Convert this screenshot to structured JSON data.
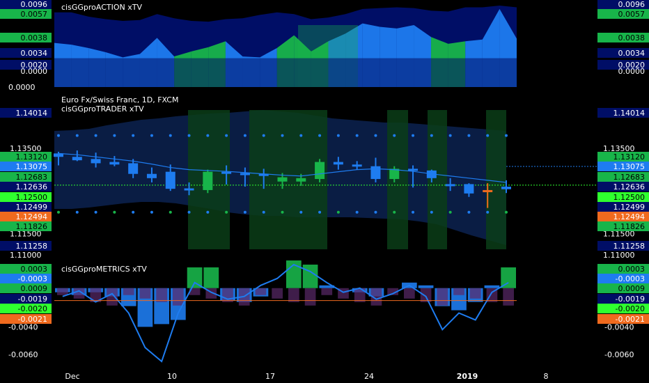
{
  "colors": {
    "background": "#000000",
    "navy": "#000e66",
    "blue": "#1e7cf0",
    "green": "#18b54a",
    "darkgreen": "#0a3d18",
    "darkblue": "#0a1d44",
    "orange": "#f06a1e",
    "lime": "#2fff2f",
    "bright_green": "#16c43c"
  },
  "panes": {
    "action": {
      "title": "cisGGproACTION xTV"
    },
    "trader": {
      "symbol_line": "Euro Fx/Swiss Franc, 1D, FXCM",
      "title": "cisGGproTRADER xTV"
    },
    "metrics": {
      "title": "cisGGproMETRICS xTV"
    }
  },
  "x_axis_labels": [
    "Dec",
    "10",
    "17",
    "24",
    "2019",
    "8"
  ],
  "chart_data": [
    {
      "type": "area",
      "name": "cisGGproACTION xTV",
      "ylim": [
        0,
        0.0096
      ],
      "tick_labels": [
        "0.0096",
        "0.0000"
      ],
      "badges": [
        {
          "text": "0.0096",
          "color": "navy"
        },
        {
          "text": "0.0057",
          "color": "green"
        },
        {
          "text": "0.0038",
          "color": "green"
        },
        {
          "text": "0.0034",
          "color": "navy"
        },
        {
          "text": "0.0020",
          "color": "navy"
        },
        {
          "text": "0.0000",
          "color": "none"
        }
      ],
      "series": [
        {
          "color": "blue",
          "values": [
            0.0052,
            0.005,
            0.0046,
            0.0041,
            0.0035,
            0.0039,
            0.0058,
            0.0036,
            0.0042,
            0.0047,
            0.0054,
            0.0036,
            0.0035,
            0.0046,
            0.0061,
            0.0042,
            0.0054,
            0.0063,
            0.0075,
            0.0071,
            0.0069,
            0.0073,
            0.0059,
            0.0051,
            0.0054,
            0.0056,
            0.0092,
            0.0057
          ]
        },
        {
          "color": "navy",
          "values": [
            0.0088,
            0.0088,
            0.0083,
            0.008,
            0.0078,
            0.0079,
            0.0086,
            0.0081,
            0.0078,
            0.0077,
            0.008,
            0.0081,
            0.0085,
            0.0088,
            0.0086,
            0.008,
            0.0082,
            0.0086,
            0.0092,
            0.0093,
            0.0094,
            0.0093,
            0.009,
            0.0089,
            0.0094,
            0.0094,
            0.0096,
            0.0094
          ]
        }
      ]
    },
    {
      "type": "candlestick",
      "name": "cisGGproTRADER xTV",
      "ylim": [
        1.109,
        1.144
      ],
      "tick_labels": [
        "1.13500",
        "1.11500",
        "1.11000"
      ],
      "badges": [
        {
          "text": "1.14014",
          "color": "navy"
        },
        {
          "text": "1.13120",
          "color": "green"
        },
        {
          "text": "1.13075",
          "color": "blue"
        },
        {
          "text": "1.12683",
          "color": "green"
        },
        {
          "text": "1.12636",
          "color": "navy"
        },
        {
          "text": "1.12500",
          "color": "lime"
        },
        {
          "text": "1.12499",
          "color": "navy"
        },
        {
          "text": "1.12494",
          "color": "orange"
        },
        {
          "text": "1.11826",
          "color": "green"
        },
        {
          "text": "1.11258",
          "color": "navy"
        }
      ],
      "candles": [
        {
          "o": 1.1338,
          "h": 1.1342,
          "l": 1.131,
          "c": 1.133,
          "color": "blue"
        },
        {
          "o": 1.133,
          "h": 1.1345,
          "l": 1.132,
          "c": 1.1322,
          "color": "blue"
        },
        {
          "o": 1.1325,
          "h": 1.134,
          "l": 1.1305,
          "c": 1.1315,
          "color": "blue"
        },
        {
          "o": 1.1318,
          "h": 1.1332,
          "l": 1.1308,
          "c": 1.1312,
          "color": "blue"
        },
        {
          "o": 1.1315,
          "h": 1.1325,
          "l": 1.128,
          "c": 1.129,
          "color": "blue"
        },
        {
          "o": 1.129,
          "h": 1.1305,
          "l": 1.127,
          "c": 1.128,
          "color": "blue"
        },
        {
          "o": 1.1295,
          "h": 1.1312,
          "l": 1.125,
          "c": 1.1255,
          "color": "blue"
        },
        {
          "o": 1.1256,
          "h": 1.127,
          "l": 1.124,
          "c": 1.1252,
          "color": "blue"
        },
        {
          "o": 1.1252,
          "h": 1.13,
          "l": 1.1245,
          "c": 1.1295,
          "color": "green"
        },
        {
          "o": 1.1295,
          "h": 1.131,
          "l": 1.1265,
          "c": 1.1292,
          "color": "blue"
        },
        {
          "o": 1.1292,
          "h": 1.1305,
          "l": 1.126,
          "c": 1.129,
          "color": "blue"
        },
        {
          "o": 1.129,
          "h": 1.1302,
          "l": 1.1255,
          "c": 1.1288,
          "color": "blue"
        },
        {
          "o": 1.1272,
          "h": 1.1292,
          "l": 1.1255,
          "c": 1.1282,
          "color": "green"
        },
        {
          "o": 1.1272,
          "h": 1.129,
          "l": 1.1262,
          "c": 1.128,
          "color": "green"
        },
        {
          "o": 1.1278,
          "h": 1.1325,
          "l": 1.127,
          "c": 1.1318,
          "color": "green"
        },
        {
          "o": 1.1318,
          "h": 1.133,
          "l": 1.13,
          "c": 1.1312,
          "color": "blue"
        },
        {
          "o": 1.1312,
          "h": 1.132,
          "l": 1.13,
          "c": 1.1308,
          "color": "blue"
        },
        {
          "o": 1.1308,
          "h": 1.1328,
          "l": 1.127,
          "c": 1.1278,
          "color": "blue"
        },
        {
          "o": 1.1278,
          "h": 1.1308,
          "l": 1.127,
          "c": 1.1302,
          "color": "green"
        },
        {
          "o": 1.1302,
          "h": 1.131,
          "l": 1.1258,
          "c": 1.1298,
          "color": "blue"
        },
        {
          "o": 1.1298,
          "h": 1.13,
          "l": 1.127,
          "c": 1.128,
          "color": "blue"
        },
        {
          "o": 1.1266,
          "h": 1.128,
          "l": 1.125,
          "c": 1.1265,
          "color": "blue"
        },
        {
          "o": 1.1266,
          "h": 1.1268,
          "l": 1.1236,
          "c": 1.1244,
          "color": "blue"
        },
        {
          "o": 1.1252,
          "h": 1.1268,
          "l": 1.121,
          "c": 1.1249,
          "color": "orange"
        },
        {
          "o": 1.126,
          "h": 1.1275,
          "l": 1.1245,
          "c": 1.1254,
          "color": "blue"
        }
      ]
    },
    {
      "type": "bar",
      "name": "cisGGproMETRICS xTV",
      "ylim": [
        -0.0068,
        0.0006
      ],
      "tick_labels": [
        "0.0003",
        "-0.0040",
        "-0.0060"
      ],
      "badges": [
        {
          "text": "0.0003",
          "color": "green"
        },
        {
          "text": "-0.0003",
          "color": "blue"
        },
        {
          "text": "0.0009",
          "color": "green"
        },
        {
          "text": "-0.0019",
          "color": "navy"
        },
        {
          "text": "-0.0020",
          "color": "lime"
        },
        {
          "text": "-0.0021",
          "color": "orange"
        }
      ],
      "series": [
        {
          "name": "",
          "color": "blue",
          "values": [
            -0.0015,
            -0.0017,
            -0.0015,
            -0.0018,
            -0.0025,
            -0.004,
            -0.0038,
            -0.0035,
            0.0003,
            0.0003,
            -0.0021,
            -0.0022,
            -0.0018,
            -0.0012,
            0.0008,
            0.0005,
            -0.001,
            -0.0012,
            -0.0015,
            -0.0018,
            -0.0012,
            -0.0008,
            -0.001,
            -0.0025,
            -0.0028,
            -0.0022,
            -0.001,
            0.0003
          ]
        }
      ]
    }
  ]
}
